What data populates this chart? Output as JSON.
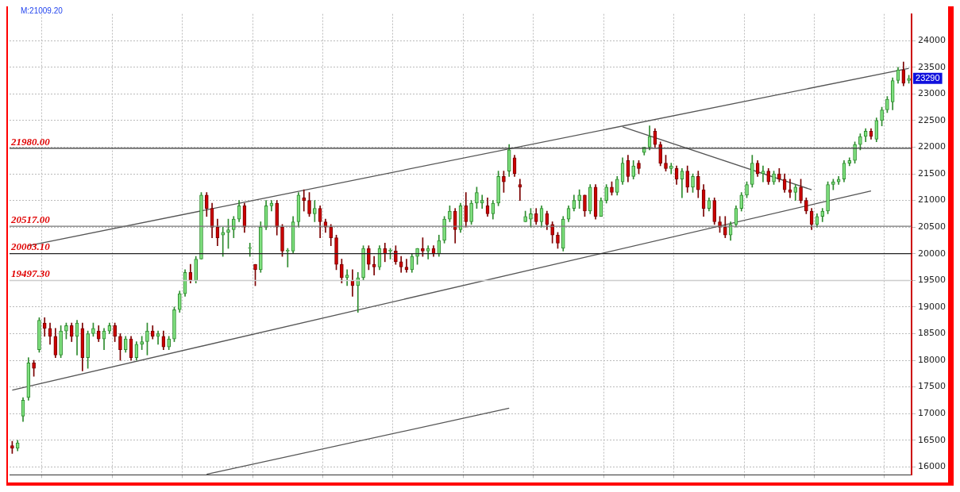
{
  "chart_data": {
    "type": "candlestick",
    "categories": [
      null,
      null,
      null,
      null,
      null,
      null,
      null,
      null,
      null,
      null,
      null,
      null,
      null,
      null,
      null,
      null,
      null,
      null,
      null,
      null,
      null,
      null,
      null,
      null,
      null,
      null,
      null,
      null,
      null,
      null,
      null,
      null,
      null,
      null,
      null,
      null,
      null,
      null,
      null,
      null,
      null,
      null,
      null,
      null,
      null,
      null,
      null,
      null,
      null,
      null,
      null,
      null,
      null,
      null,
      null,
      null,
      null,
      null,
      null,
      null,
      null,
      null,
      null,
      null,
      null,
      null,
      null,
      null,
      null,
      null,
      null,
      null,
      null,
      null,
      null,
      null,
      null,
      null,
      null,
      null,
      null,
      null,
      null,
      null,
      null,
      null,
      null,
      null,
      null,
      null,
      null,
      null,
      null,
      null,
      null,
      null,
      null,
      null,
      null,
      null,
      null,
      null,
      null,
      null,
      null,
      null,
      null,
      null,
      null,
      null,
      null,
      null,
      null,
      null,
      null,
      null,
      null,
      null,
      null,
      null,
      null,
      null,
      null,
      null,
      null,
      null,
      null,
      null,
      null,
      null,
      null,
      null,
      null,
      null,
      null,
      null,
      null,
      null,
      null,
      null,
      null,
      null,
      null,
      null,
      null,
      null,
      null,
      null,
      null,
      null,
      null,
      null,
      null,
      null,
      null,
      null,
      null,
      null,
      null,
      null,
      null,
      null,
      null,
      null,
      null,
      null,
      null
    ],
    "ohlc": [
      [
        16400,
        16480,
        16250,
        16350
      ],
      [
        16350,
        16500,
        16300,
        16450
      ],
      [
        16950,
        17300,
        16850,
        17250
      ],
      [
        17300,
        18050,
        17250,
        17950
      ],
      [
        17950,
        18000,
        17700,
        17850
      ],
      [
        18200,
        18800,
        18150,
        18750
      ],
      [
        18700,
        18800,
        18450,
        18600
      ],
      [
        18600,
        18700,
        18300,
        18450
      ],
      [
        18450,
        18600,
        18050,
        18100
      ],
      [
        18100,
        18650,
        18050,
        18550
      ],
      [
        18550,
        18700,
        18400,
        18650
      ],
      [
        18650,
        18700,
        18350,
        18450
      ],
      [
        18450,
        18750,
        18100,
        18700
      ],
      [
        18600,
        18700,
        17800,
        18050
      ],
      [
        18050,
        18550,
        17850,
        18500
      ],
      [
        18500,
        18700,
        18450,
        18600
      ],
      [
        18550,
        18650,
        18350,
        18400
      ],
      [
        18400,
        18600,
        18200,
        18550
      ],
      [
        18550,
        18700,
        18500,
        18650
      ],
      [
        18650,
        18700,
        18350,
        18450
      ],
      [
        18450,
        18500,
        18000,
        18200
      ],
      [
        18200,
        18450,
        18150,
        18400
      ],
      [
        18400,
        18450,
        18000,
        18050
      ],
      [
        18050,
        18350,
        18000,
        18300
      ],
      [
        18300,
        18450,
        18200,
        18350
      ],
      [
        18350,
        18700,
        18100,
        18550
      ],
      [
        18550,
        18650,
        18400,
        18450
      ],
      [
        18450,
        18550,
        18300,
        18500
      ],
      [
        18450,
        18550,
        18200,
        18250
      ],
      [
        18250,
        18450,
        18200,
        18400
      ],
      [
        18400,
        19000,
        18350,
        18950
      ],
      [
        18950,
        19300,
        18900,
        19250
      ],
      [
        19250,
        19700,
        19200,
        19650
      ],
      [
        19650,
        19800,
        19450,
        19500
      ],
      [
        19500,
        19950,
        19450,
        19900
      ],
      [
        19900,
        21150,
        19900,
        21100
      ],
      [
        21100,
        21150,
        20700,
        20850
      ],
      [
        20850,
        20950,
        20300,
        20500
      ],
      [
        20500,
        20650,
        20150,
        20300
      ],
      [
        20350,
        20500,
        19950,
        20400
      ],
      [
        20400,
        20650,
        20100,
        20450
      ],
      [
        20450,
        20700,
        20300,
        20650
      ],
      [
        20650,
        21000,
        20600,
        20900
      ],
      [
        20900,
        20950,
        20400,
        20500
      ],
      [
        20100,
        20200,
        19950,
        20100
      ],
      [
        19800,
        19800,
        19400,
        19700
      ],
      [
        19700,
        20600,
        19650,
        20500
      ],
      [
        20500,
        21000,
        20450,
        20900
      ],
      [
        20900,
        21000,
        20800,
        20950
      ],
      [
        20950,
        21000,
        20350,
        20500
      ],
      [
        20500,
        20550,
        19950,
        20050
      ],
      [
        20050,
        20100,
        19750,
        20050
      ],
      [
        20050,
        20700,
        20000,
        20600
      ],
      [
        20600,
        21150,
        20500,
        21100
      ],
      [
        21050,
        21200,
        20800,
        21000
      ],
      [
        21000,
        21150,
        20700,
        20750
      ],
      [
        20750,
        21000,
        20600,
        20850
      ],
      [
        20850,
        20900,
        20300,
        20600
      ],
      [
        20600,
        20650,
        20400,
        20500
      ],
      [
        20500,
        20550,
        20150,
        20300
      ],
      [
        20300,
        20350,
        19700,
        19800
      ],
      [
        19800,
        19900,
        19450,
        19550
      ],
      [
        19550,
        19700,
        19400,
        19600
      ],
      [
        19500,
        19700,
        19200,
        19400
      ],
      [
        19400,
        19650,
        18900,
        19550
      ],
      [
        19550,
        20150,
        19500,
        20100
      ],
      [
        20100,
        20150,
        19700,
        19800
      ],
      [
        19800,
        19950,
        19600,
        19750
      ],
      [
        19750,
        20150,
        19700,
        20100
      ],
      [
        20100,
        20200,
        19850,
        20000
      ],
      [
        20050,
        20100,
        19900,
        20050
      ],
      [
        20050,
        20150,
        19800,
        19850
      ],
      [
        19850,
        19950,
        19650,
        19750
      ],
      [
        19750,
        19900,
        19650,
        19700
      ],
      [
        19700,
        20000,
        19650,
        19950
      ],
      [
        19950,
        20100,
        19800,
        20100
      ],
      [
        20100,
        20300,
        19950,
        20050
      ],
      [
        20050,
        20150,
        19900,
        20100
      ],
      [
        20100,
        20150,
        19950,
        20000
      ],
      [
        20000,
        20350,
        19950,
        20250
      ],
      [
        20250,
        20700,
        20200,
        20650
      ],
      [
        20650,
        20900,
        20600,
        20800
      ],
      [
        20800,
        20850,
        20200,
        20450
      ],
      [
        20450,
        20950,
        20400,
        20900
      ],
      [
        20900,
        21150,
        20500,
        20600
      ],
      [
        20600,
        21000,
        20550,
        20950
      ],
      [
        20950,
        21250,
        20850,
        21150
      ],
      [
        20950,
        21100,
        20850,
        21000
      ],
      [
        20900,
        21050,
        20700,
        20750
      ],
      [
        20750,
        21000,
        20650,
        20950
      ],
      [
        20950,
        21550,
        20900,
        21450
      ],
      [
        21450,
        21550,
        21150,
        21350
      ],
      [
        21550,
        22050,
        21450,
        21950
      ],
      [
        21800,
        21850,
        21450,
        21500
      ],
      [
        21300,
        21400,
        21000,
        21250
      ],
      [
        20600,
        20800,
        20600,
        20700
      ],
      [
        20650,
        20850,
        20500,
        20750
      ],
      [
        20750,
        20850,
        20550,
        20600
      ],
      [
        20600,
        20900,
        20500,
        20850
      ],
      [
        20750,
        20800,
        20450,
        20550
      ],
      [
        20550,
        20600,
        20200,
        20350
      ],
      [
        20350,
        20400,
        20100,
        20200
      ],
      [
        20100,
        20700,
        20050,
        20650
      ],
      [
        20650,
        20900,
        20600,
        20850
      ],
      [
        20850,
        21100,
        20800,
        21000
      ],
      [
        21000,
        21200,
        20850,
        21100
      ],
      [
        21100,
        21100,
        20700,
        20800
      ],
      [
        20800,
        21300,
        20750,
        21250
      ],
      [
        21250,
        21300,
        20650,
        20700
      ],
      [
        20700,
        21050,
        20700,
        21000
      ],
      [
        21000,
        21300,
        20950,
        21250
      ],
      [
        21250,
        21350,
        21100,
        21150
      ],
      [
        21150,
        21450,
        21100,
        21400
      ],
      [
        21350,
        21800,
        21300,
        21700
      ],
      [
        21750,
        21850,
        21350,
        21450
      ],
      [
        21450,
        21750,
        21400,
        21650
      ],
      [
        21700,
        21750,
        21500,
        21600
      ],
      [
        21900,
        22000,
        21850,
        22000
      ],
      [
        22000,
        22400,
        21950,
        22200
      ],
      [
        22300,
        22350,
        22000,
        22050
      ],
      [
        22050,
        22100,
        21650,
        21700
      ],
      [
        21700,
        21850,
        21550,
        21600
      ],
      [
        21600,
        21700,
        21500,
        21650
      ],
      [
        21600,
        21650,
        21300,
        21400
      ],
      [
        21400,
        21600,
        21050,
        21550
      ],
      [
        21550,
        21650,
        21150,
        21250
      ],
      [
        21250,
        21500,
        21150,
        21450
      ],
      [
        21450,
        21550,
        21050,
        21200
      ],
      [
        21200,
        21300,
        20700,
        20850
      ],
      [
        20850,
        21050,
        20800,
        21000
      ],
      [
        21000,
        21050,
        20550,
        20600
      ],
      [
        20600,
        20700,
        20400,
        20500
      ],
      [
        20500,
        20700,
        20300,
        20350
      ],
      [
        20350,
        20600,
        20250,
        20550
      ],
      [
        20550,
        20900,
        20500,
        20850
      ],
      [
        20850,
        21150,
        20800,
        21100
      ],
      [
        21100,
        21350,
        21050,
        21300
      ],
      [
        21300,
        21850,
        21250,
        21700
      ],
      [
        21700,
        21750,
        21450,
        21500
      ],
      [
        21500,
        21650,
        21350,
        21550
      ],
      [
        21550,
        21600,
        21300,
        21350
      ],
      [
        21350,
        21550,
        21300,
        21500
      ],
      [
        21500,
        21600,
        21350,
        21400
      ],
      [
        21400,
        21500,
        21150,
        21200
      ],
      [
        21200,
        21400,
        21050,
        21150
      ],
      [
        21150,
        21300,
        21000,
        21250
      ],
      [
        21250,
        21400,
        20950,
        21000
      ],
      [
        21000,
        21050,
        20750,
        20800
      ],
      [
        20800,
        20850,
        20450,
        20550
      ],
      [
        20550,
        20750,
        20500,
        20700
      ],
      [
        20700,
        20850,
        20600,
        20800
      ],
      [
        20800,
        21350,
        20750,
        21300
      ],
      [
        21300,
        21400,
        21200,
        21350
      ],
      [
        21350,
        21450,
        21300,
        21400
      ],
      [
        21400,
        21750,
        21350,
        21700
      ],
      [
        21700,
        21800,
        21650,
        21750
      ],
      [
        21750,
        22100,
        21700,
        22050
      ],
      [
        22050,
        22250,
        21950,
        22200
      ],
      [
        22200,
        22350,
        22100,
        22300
      ],
      [
        22300,
        22350,
        22150,
        22200
      ],
      [
        22150,
        22550,
        22100,
        22500
      ],
      [
        22500,
        22750,
        22400,
        22700
      ],
      [
        22700,
        22950,
        22650,
        22900
      ],
      [
        22850,
        23300,
        22700,
        23250
      ],
      [
        23250,
        23500,
        23200,
        23450
      ],
      [
        23450,
        23600,
        23150,
        23200
      ],
      [
        23250,
        23350,
        23200,
        23290
      ]
    ],
    "series": [
      {
        "type": "line",
        "color": "#555555",
        "values": [
          null,
          null,
          null,
          20150,
          null,
          null,
          null,
          null,
          null,
          null,
          null,
          null,
          null,
          null,
          null,
          null,
          null,
          null,
          null,
          null,
          null,
          null,
          null,
          null,
          null,
          null,
          null,
          null,
          null,
          null,
          null,
          null,
          null,
          null,
          null,
          null,
          null,
          null,
          null,
          null,
          null,
          null,
          null,
          null,
          null,
          null,
          null,
          null,
          null,
          null,
          null,
          null,
          null,
          null,
          null,
          null,
          null,
          null,
          null,
          null,
          null,
          null,
          null,
          null,
          null,
          null,
          null,
          null,
          null,
          null,
          null,
          null,
          null,
          null,
          null,
          null,
          null,
          null,
          null,
          null,
          null,
          null,
          null,
          null,
          null,
          null,
          null,
          null,
          null,
          null,
          null,
          null,
          null,
          null,
          null,
          null,
          null,
          null,
          null,
          null,
          null,
          null,
          null,
          null,
          null,
          null,
          null,
          null,
          null,
          null,
          null,
          null,
          null,
          null,
          null,
          null,
          null,
          null,
          null,
          null,
          null,
          null,
          null,
          null,
          null,
          null,
          null,
          null,
          null,
          null,
          null,
          null,
          null,
          null,
          null,
          null,
          null,
          null,
          null,
          null,
          null,
          null,
          null,
          null,
          null,
          null,
          null,
          null,
          null,
          null,
          null,
          null,
          null,
          null,
          null,
          null,
          null,
          null,
          null,
          null,
          null,
          null,
          null,
          null,
          null,
          null,
          23480
        ]
      },
      {
        "type": "line",
        "color": "#555555",
        "values": [
          17440,
          null,
          null,
          null,
          null,
          null,
          null,
          null,
          null,
          null,
          null,
          null,
          null,
          null,
          null,
          null,
          null,
          null,
          null,
          null,
          null,
          null,
          null,
          null,
          null,
          null,
          null,
          null,
          null,
          null,
          null,
          null,
          null,
          null,
          null,
          null,
          null,
          null,
          null,
          null,
          null,
          null,
          null,
          null,
          null,
          null,
          null,
          null,
          null,
          null,
          null,
          null,
          null,
          null,
          null,
          null,
          null,
          null,
          null,
          null,
          null,
          null,
          null,
          null,
          null,
          null,
          null,
          null,
          null,
          null,
          null,
          null,
          null,
          null,
          null,
          null,
          null,
          null,
          null,
          null,
          null,
          null,
          null,
          null,
          null,
          null,
          null,
          null,
          null,
          null,
          null,
          null,
          null,
          null,
          null,
          null,
          null,
          null,
          null,
          null,
          null,
          null,
          null,
          null,
          null,
          null,
          null,
          null,
          null,
          null,
          null,
          null,
          null,
          null,
          null,
          null,
          null,
          null,
          null,
          null,
          null,
          null,
          null,
          null,
          null,
          null,
          null,
          null,
          null,
          null,
          null,
          null,
          null,
          null,
          null,
          null,
          null,
          null,
          null,
          null,
          null,
          null,
          null,
          null,
          null,
          null,
          null,
          null,
          null,
          null,
          null,
          null,
          null,
          null,
          null,
          null,
          null,
          null,
          null,
          21180,
          null,
          null,
          null,
          null,
          null,
          null,
          null
        ]
      },
      {
        "type": "line",
        "color": "#555555",
        "values": [
          null,
          null,
          null,
          null,
          null,
          null,
          null,
          null,
          null,
          null,
          null,
          null,
          null,
          null,
          null,
          null,
          null,
          null,
          null,
          null,
          null,
          null,
          null,
          null,
          null,
          null,
          null,
          null,
          null,
          null,
          null,
          null,
          null,
          null,
          null,
          null,
          null,
          null,
          null,
          null,
          null,
          null,
          null,
          null,
          null,
          null,
          null,
          null,
          null,
          null,
          null,
          null,
          null,
          null,
          null,
          null,
          null,
          null,
          null,
          null,
          null,
          null,
          null,
          null,
          null,
          null,
          null,
          null,
          null,
          null,
          null,
          null,
          null,
          null,
          null,
          null,
          null,
          null,
          null,
          null,
          null,
          null,
          null,
          null,
          null,
          null,
          null,
          null,
          null,
          null,
          null,
          null,
          null,
          null,
          null,
          null,
          null,
          null,
          null,
          null,
          null,
          null,
          null,
          null,
          null,
          null,
          null,
          null,
          null,
          null,
          null,
          null,
          null,
          22380,
          null,
          null,
          null,
          null,
          null,
          null,
          null,
          null,
          null,
          null,
          null,
          null,
          null,
          null,
          null,
          null,
          null,
          null,
          null,
          null,
          null,
          null,
          null,
          null,
          null,
          null,
          null,
          null,
          null,
          null,
          null,
          null,
          null,
          null,
          21200,
          null,
          null,
          null,
          null,
          null,
          null,
          null,
          null,
          null,
          null,
          null,
          null,
          null,
          null,
          null,
          null,
          null,
          null
        ]
      },
      {
        "type": "line",
        "color": "#555555",
        "values": [
          null,
          null,
          null,
          null,
          null,
          null,
          null,
          null,
          null,
          null,
          null,
          null,
          null,
          null,
          null,
          null,
          null,
          null,
          null,
          null,
          null,
          null,
          null,
          null,
          null,
          null,
          null,
          null,
          null,
          null,
          null,
          null,
          null,
          null,
          null,
          null,
          15860,
          null,
          null,
          null,
          null,
          null,
          null,
          null,
          null,
          null,
          null,
          null,
          null,
          null,
          null,
          null,
          null,
          null,
          null,
          null,
          null,
          null,
          null,
          null,
          null,
          null,
          null,
          null,
          null,
          null,
          null,
          null,
          null,
          null,
          null,
          null,
          null,
          null,
          null,
          null,
          null,
          null,
          null,
          null,
          null,
          null,
          null,
          null,
          null,
          null,
          null,
          null,
          null,
          null,
          null,
          null,
          17100,
          null,
          null,
          null,
          null,
          null,
          null,
          null,
          null,
          null,
          null,
          null,
          null,
          null,
          null,
          null,
          null,
          null,
          null,
          null,
          null,
          null,
          null,
          null,
          null,
          null,
          null,
          null,
          null,
          null,
          null,
          null,
          null,
          null,
          null,
          null,
          null,
          null,
          null,
          null,
          null,
          null,
          null,
          null,
          null,
          null,
          null,
          null,
          null,
          null,
          null,
          null,
          null,
          null,
          null,
          null,
          null,
          null,
          null,
          null,
          null,
          null,
          null,
          null,
          null,
          null,
          null,
          null,
          null,
          null,
          null,
          null,
          null,
          null,
          null
        ]
      }
    ],
    "ylim": [
      15850,
      24500
    ],
    "yticks": [
      16000,
      16500,
      17000,
      17500,
      18000,
      18500,
      19000,
      19500,
      20000,
      20500,
      21000,
      21500,
      22000,
      22500,
      23000,
      23500,
      24000
    ],
    "ref_lines": [
      {
        "axis": "y",
        "value": 21980,
        "label": "21980.00",
        "color": "#333333"
      },
      {
        "axis": "y",
        "value": 20517,
        "label": "20517.00",
        "color": "#777777"
      },
      {
        "axis": "y",
        "value": 20003.1,
        "label": "20003.10",
        "color": "#222222"
      },
      {
        "axis": "y",
        "value": 19497.3,
        "label": "19497.30",
        "color": "#cccccc"
      }
    ],
    "annotations": [
      "M:21009.20",
      "23290"
    ],
    "grid": true,
    "tick_labels": "y",
    "legend": false
  }
}
